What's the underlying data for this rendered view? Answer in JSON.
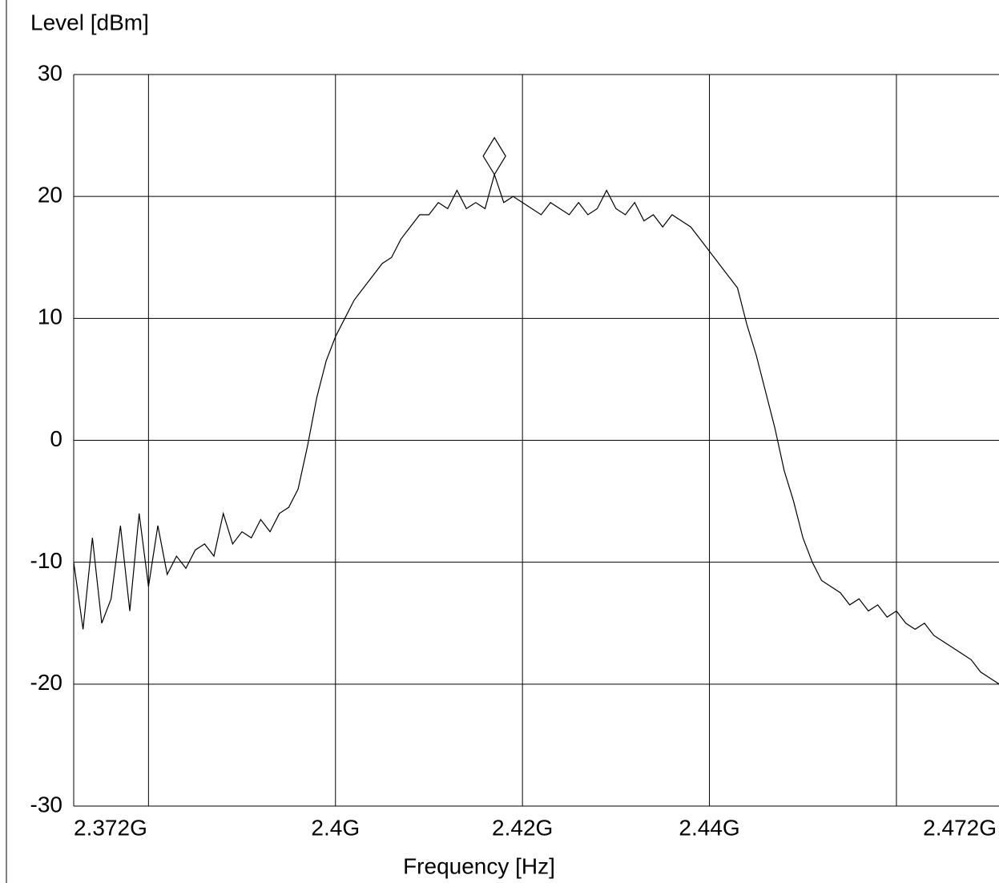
{
  "chart_data": {
    "type": "line",
    "x_label": "Frequency [Hz]",
    "y_label": "Level [dBm]",
    "color": "#000000",
    "x": [
      2372000000.0,
      2373000000.0,
      2374000000.0,
      2375000000.0,
      2376000000.0,
      2377000000.0,
      2378000000.0,
      2379000000.0,
      2380000000.0,
      2381000000.0,
      2382000000.0,
      2383000000.0,
      2384000000.0,
      2385000000.0,
      2386000000.0,
      2387000000.0,
      2388000000.0,
      2389000000.0,
      2390000000.0,
      2391000000.0,
      2392000000.0,
      2393000000.0,
      2394000000.0,
      2395000000.0,
      2396000000.0,
      2397000000.0,
      2398000000.0,
      2399000000.0,
      2400000000.0,
      2401000000.0,
      2402000000.0,
      2403000000.0,
      2404000000.0,
      2405000000.0,
      2406000000.0,
      2407000000.0,
      2408000000.0,
      2409000000.0,
      2410000000.0,
      2411000000.0,
      2412000000.0,
      2413000000.0,
      2414000000.0,
      2415000000.0,
      2416000000.0,
      2417000000.0,
      2418000000.0,
      2419000000.0,
      2420000000.0,
      2421000000.0,
      2422000000.0,
      2423000000.0,
      2424000000.0,
      2425000000.0,
      2426000000.0,
      2427000000.0,
      2428000000.0,
      2429000000.0,
      2430000000.0,
      2431000000.0,
      2432000000.0,
      2433000000.0,
      2434000000.0,
      2435000000.0,
      2436000000.0,
      2437000000.0,
      2438000000.0,
      2439000000.0,
      2440000000.0,
      2441000000.0,
      2442000000.0,
      2443000000.0,
      2444000000.0,
      2445000000.0,
      2446000000.0,
      2447000000.0,
      2448000000.0,
      2449000000.0,
      2450000000.0,
      2451000000.0,
      2452000000.0,
      2453000000.0,
      2454000000.0,
      2455000000.0,
      2456000000.0,
      2457000000.0,
      2458000000.0,
      2459000000.0,
      2460000000.0,
      2461000000.0,
      2462000000.0,
      2463000000.0,
      2464000000.0,
      2465000000.0,
      2466000000.0,
      2467000000.0,
      2468000000.0,
      2469000000.0,
      2470000000.0,
      2471000000.0,
      2472000000.0
    ],
    "values": [
      -10,
      -15.5,
      -8,
      -15,
      -13,
      -7,
      -14,
      -6,
      -12,
      -7,
      -11,
      -9.5,
      -10.5,
      -9,
      -8.5,
      -9.5,
      -6,
      -8.5,
      -7.5,
      -8,
      -6.5,
      -7.5,
      -6,
      -5.5,
      -4,
      -0.5,
      3.5,
      6.5,
      8.5,
      10,
      11.5,
      12.5,
      13.5,
      14.5,
      15,
      16.5,
      17.5,
      18.5,
      18.5,
      19.5,
      19,
      20.5,
      19,
      19.5,
      19,
      21.8,
      19.5,
      20,
      19.5,
      19,
      18.5,
      19.5,
      19,
      18.5,
      19.5,
      18.5,
      19,
      20.5,
      19,
      18.5,
      19.5,
      18,
      18.5,
      17.5,
      18.5,
      18,
      17.5,
      16.5,
      15.5,
      14.5,
      13.5,
      12.5,
      9.5,
      7,
      4,
      1,
      -2.5,
      -5,
      -8,
      -10,
      -11.5,
      -12,
      -12.5,
      -13.5,
      -13,
      -14,
      -13.5,
      -14.5,
      -14,
      -15,
      -15.5,
      -15,
      -16,
      -16.5,
      -17,
      -17.5,
      -18,
      -19,
      -19.5,
      -20,
      -19
    ],
    "marker": {
      "x": 2417000000.0,
      "y": 21.8
    },
    "xlim": [
      2372000000.0,
      2472000000.0
    ],
    "xticks": [
      {
        "value": 2372000000.0,
        "label": "2.372G"
      },
      {
        "value": 2400000000.0,
        "label": "2.4G"
      },
      {
        "value": 2420000000.0,
        "label": "2.42G"
      },
      {
        "value": 2440000000.0,
        "label": "2.44G"
      },
      {
        "value": 2472000000.0,
        "label": "2.472G"
      }
    ],
    "xgrid": [
      2380000000.0,
      2400000000.0,
      2420000000.0,
      2440000000.0,
      2460000000.0
    ],
    "ylim": [
      -30,
      30
    ],
    "yticks": [
      -30,
      -20,
      -10,
      0,
      10,
      20,
      30
    ],
    "grid": true
  }
}
